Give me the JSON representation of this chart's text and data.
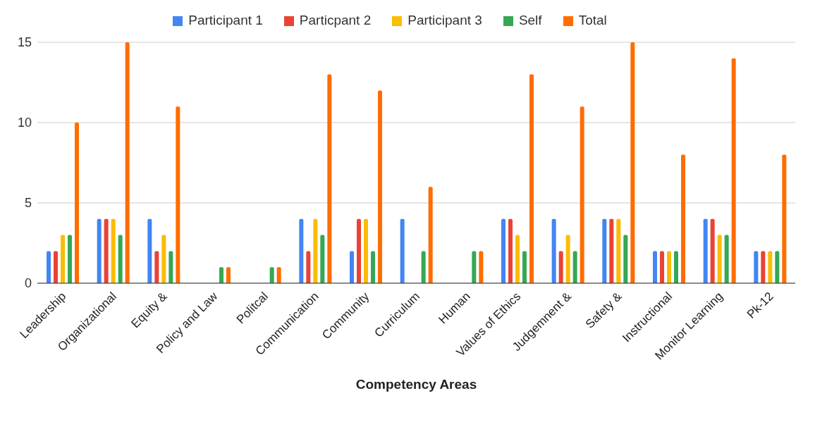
{
  "chart_data": {
    "type": "bar",
    "xlabel": "Competency Areas",
    "categories": [
      "Leadership",
      "Organizational",
      "Equity &",
      "Policy and Law",
      "Politcal",
      "Communication",
      "Community",
      "Curriculum",
      "Human",
      "Values of Ethics",
      "Judgemnent &",
      "Safety &",
      "Instructional",
      "Monitor Learning",
      "Pk-12"
    ],
    "series": [
      {
        "name": "Participant 1",
        "color": "#4285f4",
        "values": [
          2,
          4,
          4,
          0,
          0,
          4,
          2,
          4,
          0,
          4,
          4,
          4,
          2,
          4,
          2
        ]
      },
      {
        "name": "Particpant 2",
        "color": "#ea4335",
        "values": [
          2,
          4,
          2,
          0,
          0,
          2,
          4,
          0,
          0,
          4,
          2,
          4,
          2,
          4,
          2
        ]
      },
      {
        "name": "Participant 3",
        "color": "#fbbc04",
        "values": [
          3,
          4,
          3,
          0,
          0,
          4,
          4,
          0,
          0,
          3,
          3,
          4,
          2,
          3,
          2
        ]
      },
      {
        "name": "Self",
        "color": "#34a853",
        "values": [
          3,
          3,
          2,
          1,
          1,
          3,
          2,
          2,
          2,
          2,
          2,
          3,
          2,
          3,
          2
        ]
      },
      {
        "name": "Total",
        "color": "#ff6d01",
        "values": [
          10,
          15,
          11,
          1,
          1,
          13,
          12,
          6,
          2,
          13,
          11,
          15,
          8,
          14,
          8
        ]
      }
    ],
    "ylim": [
      0,
      15
    ],
    "yticks": [
      0,
      5,
      10,
      15
    ],
    "grid": "y",
    "legend": "top"
  }
}
